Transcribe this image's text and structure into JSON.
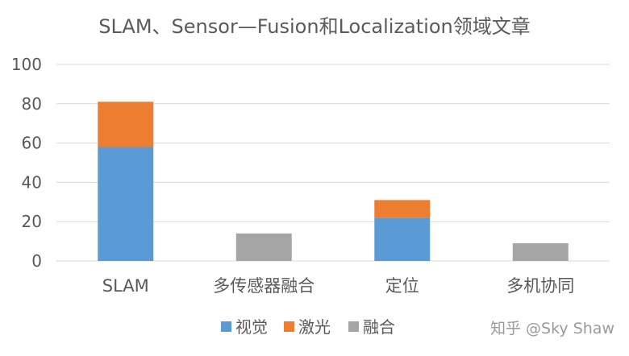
{
  "chart_data": {
    "type": "bar",
    "stacked": true,
    "title": "SLAM、Sensor—Fusion和Localization领域文章",
    "xlabel": "",
    "ylabel": "",
    "categories": [
      "SLAM",
      "多传感器融合",
      "定位",
      "多机协同"
    ],
    "series": [
      {
        "name": "视觉",
        "values": [
          58,
          0,
          22,
          0
        ],
        "color": "#5b9bd5"
      },
      {
        "name": "激光",
        "values": [
          23,
          0,
          9,
          0
        ],
        "color": "#ed7d31"
      },
      {
        "name": "融合",
        "values": [
          0,
          14,
          0,
          9
        ],
        "color": "#a5a5a5"
      }
    ],
    "ylim": [
      0,
      100
    ],
    "yticks": [
      0,
      20,
      40,
      60,
      80,
      100
    ],
    "grid": true,
    "legend_position": "bottom"
  },
  "watermark": "知乎 @Sky Shaw"
}
